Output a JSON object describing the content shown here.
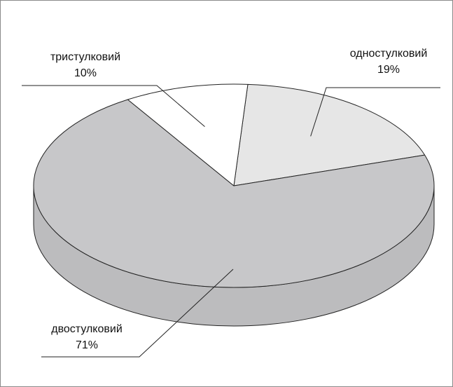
{
  "chart_data": {
    "type": "pie",
    "style": "3d",
    "title": "",
    "labels": [
      "одностулковий",
      "двостулковий",
      "тристулковий"
    ],
    "values": [
      19,
      71,
      10
    ],
    "value_labels": [
      "19%",
      "71%",
      "10%"
    ],
    "colors": [
      "#e6e6e6",
      "#c7c7c9",
      "#ffffff"
    ],
    "side_color": "#bcbcbe",
    "outline_color": "#222222"
  }
}
